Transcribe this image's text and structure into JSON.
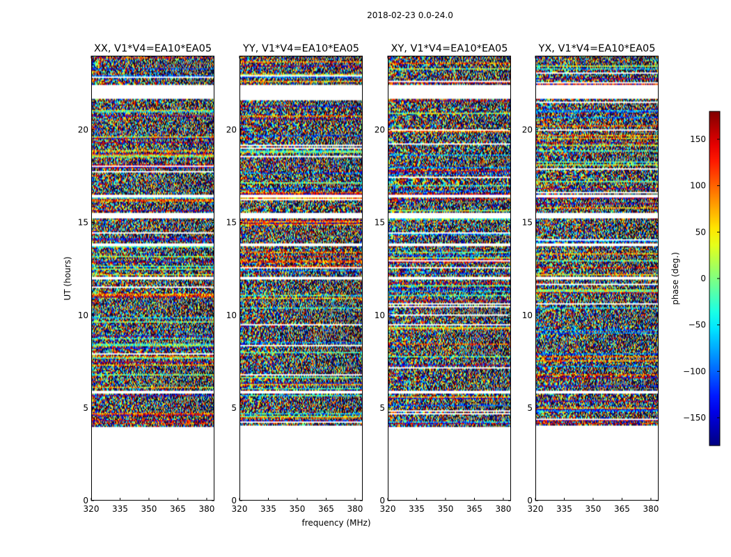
{
  "chart_data": {
    "type": "heatmap",
    "suptitle": "2018-02-23 0.0-24.0",
    "xlabel": "frequency (MHz)",
    "ylabel": "UT (hours)",
    "xlim": [
      320,
      384
    ],
    "ylim": [
      0,
      24
    ],
    "xticks": [
      {
        "value": 320,
        "label": "320"
      },
      {
        "value": 335,
        "label": "335"
      },
      {
        "value": 350,
        "label": "350"
      },
      {
        "value": 365,
        "label": "365"
      },
      {
        "value": 380,
        "label": "380"
      }
    ],
    "yticks": [
      {
        "value": 0,
        "label": "0"
      },
      {
        "value": 5,
        "label": "5"
      },
      {
        "value": 10,
        "label": "10"
      },
      {
        "value": 15,
        "label": "15"
      },
      {
        "value": 20,
        "label": "20"
      }
    ],
    "data_time_range": [
      4.0,
      24.0
    ],
    "gaps_ut": [
      [
        21.7,
        22.4
      ],
      [
        16.35,
        16.5
      ],
      [
        15.2,
        15.5
      ],
      [
        13.75,
        13.85
      ],
      [
        11.95,
        12.1
      ],
      [
        5.8,
        5.95
      ]
    ],
    "panels": [
      {
        "title": "XX, V1*V4=EA10*EA05",
        "seed": 11
      },
      {
        "title": "YY, V1*V4=EA10*EA05",
        "seed": 23
      },
      {
        "title": "XY, V1*V4=EA10*EA05",
        "seed": 37
      },
      {
        "title": "YX, V1*V4=EA10*EA05",
        "seed": 53
      }
    ],
    "colorbar": {
      "label": "phase (deg.)",
      "range": [
        -180,
        180
      ],
      "colormap": "jet",
      "ticks": [
        {
          "value": -150,
          "label": "−150"
        },
        {
          "value": -100,
          "label": "−100"
        },
        {
          "value": -50,
          "label": "−50"
        },
        {
          "value": 0,
          "label": "0"
        },
        {
          "value": 50,
          "label": "50"
        },
        {
          "value": 100,
          "label": "100"
        },
        {
          "value": 150,
          "label": "150"
        }
      ]
    }
  }
}
